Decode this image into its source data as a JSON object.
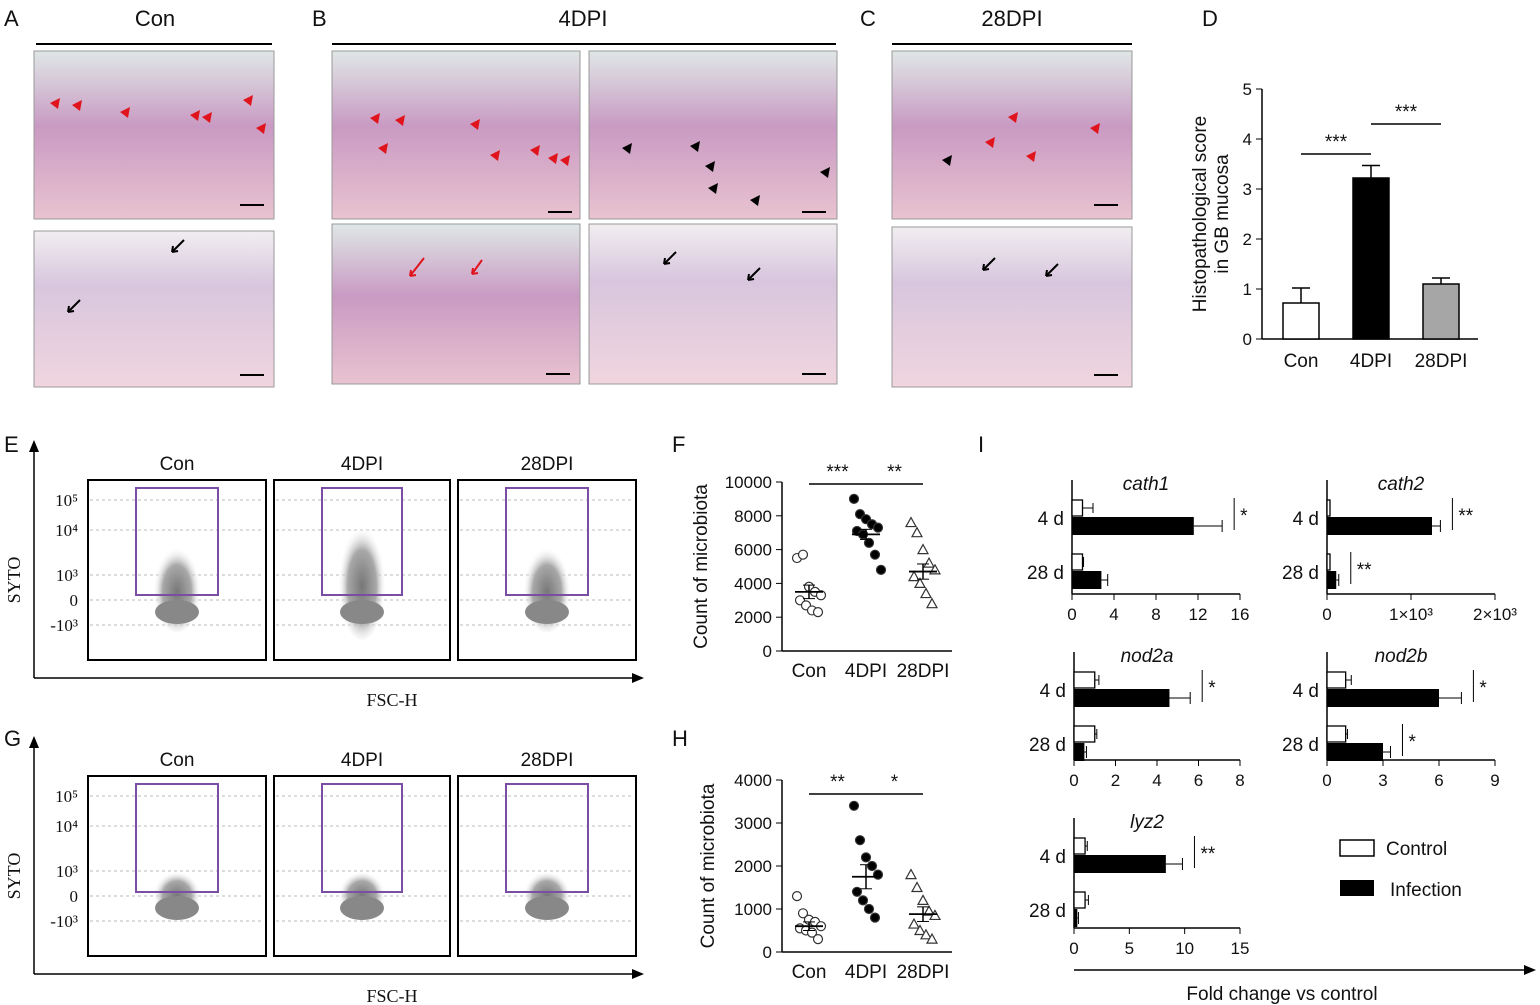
{
  "panels": {
    "A": {
      "letter": "A",
      "title": "Con"
    },
    "B": {
      "letter": "B",
      "title": "4DPI"
    },
    "C": {
      "letter": "C",
      "title": "28DPI"
    },
    "D": {
      "letter": "D"
    },
    "E": {
      "letter": "E",
      "gates": [
        "Con",
        "4DPI",
        "28DPI"
      ]
    },
    "F": {
      "letter": "F"
    },
    "G": {
      "letter": "G",
      "gates": [
        "Con",
        "4DPI",
        "28DPI"
      ]
    },
    "H": {
      "letter": "H"
    },
    "I": {
      "letter": "I"
    }
  },
  "flow": {
    "ylabel": "SYTO",
    "xlabel": "FSC-H",
    "yticks": [
      "10⁵",
      "10⁴",
      "10³",
      "0",
      "-10³"
    ]
  },
  "chart_data": [
    {
      "id": "D",
      "type": "bar",
      "categories": [
        "Con",
        "4DPI",
        "28DPI"
      ],
      "values": [
        0.72,
        3.22,
        1.1
      ],
      "errors": [
        0.3,
        0.25,
        0.12
      ],
      "colors": [
        "#ffffff",
        "#000000",
        "#a6a6a6"
      ],
      "ylabel": "Histopathological score\nin GB mucosa",
      "ylim": [
        0,
        5
      ],
      "yticks": [
        0,
        1,
        2,
        3,
        4,
        5
      ],
      "significance": [
        {
          "from": "Con",
          "to": "4DPI",
          "label": "***"
        },
        {
          "from": "4DPI",
          "to": "28DPI",
          "label": "***"
        }
      ]
    },
    {
      "id": "F",
      "type": "scatter",
      "categories": [
        "Con",
        "4DPI",
        "28DPI"
      ],
      "points": [
        [
          5500,
          5700,
          3800,
          3500,
          3300,
          3000,
          2700,
          2400,
          2300
        ],
        [
          9000,
          8100,
          7800,
          7500,
          7300,
          7100,
          6900,
          6400,
          5700,
          4800
        ],
        [
          7600,
          7000,
          6000,
          5200,
          4800,
          4400,
          4000,
          3400,
          2800
        ]
      ],
      "means": [
        3500,
        6900,
        4700
      ],
      "sems": [
        400,
        300,
        450
      ],
      "markers": [
        "open-circle",
        "filled-circle",
        "open-triangle"
      ],
      "ylabel": "Count of microbiota",
      "ylim": [
        0,
        10000
      ],
      "yticks": [
        0,
        2000,
        4000,
        6000,
        8000,
        10000
      ],
      "significance": [
        {
          "from": "Con",
          "to": "4DPI",
          "label": "***"
        },
        {
          "from": "4DPI",
          "to": "28DPI",
          "label": "**"
        }
      ]
    },
    {
      "id": "H",
      "type": "scatter",
      "categories": [
        "Con",
        "4DPI",
        "28DPI"
      ],
      "points": [
        [
          1300,
          900,
          750,
          700,
          600,
          550,
          500,
          450,
          300
        ],
        [
          3400,
          2600,
          2200,
          2000,
          1800,
          1400,
          1200,
          1000,
          800
        ],
        [
          1800,
          1500,
          1200,
          950,
          850,
          650,
          500,
          400,
          300
        ]
      ],
      "means": [
        600,
        1750,
        880
      ],
      "sems": [
        100,
        280,
        170
      ],
      "markers": [
        "open-circle",
        "filled-circle",
        "open-triangle"
      ],
      "ylabel": "Count of microbiota",
      "ylim": [
        0,
        4000
      ],
      "yticks": [
        0,
        1000,
        2000,
        3000,
        4000
      ],
      "significance": [
        {
          "from": "Con",
          "to": "4DPI",
          "label": "**"
        },
        {
          "from": "4DPI",
          "to": "28DPI",
          "label": "*"
        }
      ]
    },
    {
      "id": "I",
      "type": "bar",
      "orientation": "horizontal",
      "xlabel": "Fold change vs control",
      "legend": {
        "position": "right",
        "entries": [
          "Control",
          "Infection"
        ]
      },
      "series_colors": [
        "#ffffff",
        "#000000"
      ],
      "categories": [
        "4 d",
        "28 d"
      ],
      "genes": [
        {
          "name": "cath1",
          "xlim": [
            0,
            16
          ],
          "xticks": [
            "0",
            "4",
            "8",
            "12",
            "16"
          ],
          "xtickvals": [
            0,
            4,
            8,
            12,
            16
          ],
          "control": [
            1,
            1
          ],
          "infection": [
            11.6,
            2.8
          ],
          "control_err": [
            1.0,
            0.1
          ],
          "infection_err": [
            2.7,
            0.6
          ],
          "significance": [
            "*",
            ""
          ]
        },
        {
          "name": "cath2",
          "xlim": [
            0,
            2000
          ],
          "xticks": [
            "0",
            "1×10³",
            "2×10³"
          ],
          "xtickvals": [
            0,
            1000,
            2000
          ],
          "control": [
            1,
            1
          ],
          "infection": [
            1250,
            110
          ],
          "control_err": [
            0,
            0
          ],
          "infection_err": [
            100,
            30
          ],
          "significance": [
            "**",
            "**"
          ]
        },
        {
          "name": "nod2a",
          "xlim": [
            0,
            8
          ],
          "xticks": [
            "0",
            "2",
            "4",
            "6",
            "8"
          ],
          "xtickvals": [
            0,
            2,
            4,
            6,
            8
          ],
          "control": [
            1,
            1
          ],
          "infection": [
            4.6,
            0.5
          ],
          "control_err": [
            0.2,
            0.1
          ],
          "infection_err": [
            1.0,
            0.1
          ],
          "significance": [
            "*",
            ""
          ]
        },
        {
          "name": "nod2b",
          "xlim": [
            0,
            9
          ],
          "xticks": [
            "0",
            "3",
            "6",
            "9"
          ],
          "xtickvals": [
            0,
            3,
            6,
            9
          ],
          "control": [
            1,
            1
          ],
          "infection": [
            6.0,
            3.0
          ],
          "control_err": [
            0.3,
            0.1
          ],
          "infection_err": [
            1.2,
            0.4
          ],
          "significance": [
            "*",
            "*"
          ]
        },
        {
          "name": "lyz2",
          "xlim": [
            0,
            15
          ],
          "xticks": [
            "0",
            "5",
            "10",
            "15"
          ],
          "xtickvals": [
            0,
            5,
            10,
            15
          ],
          "control": [
            1,
            1
          ],
          "infection": [
            8.3,
            0.3
          ],
          "control_err": [
            0.2,
            0.3
          ],
          "infection_err": [
            1.5,
            0.1
          ],
          "significance": [
            "**",
            ""
          ]
        }
      ]
    }
  ]
}
